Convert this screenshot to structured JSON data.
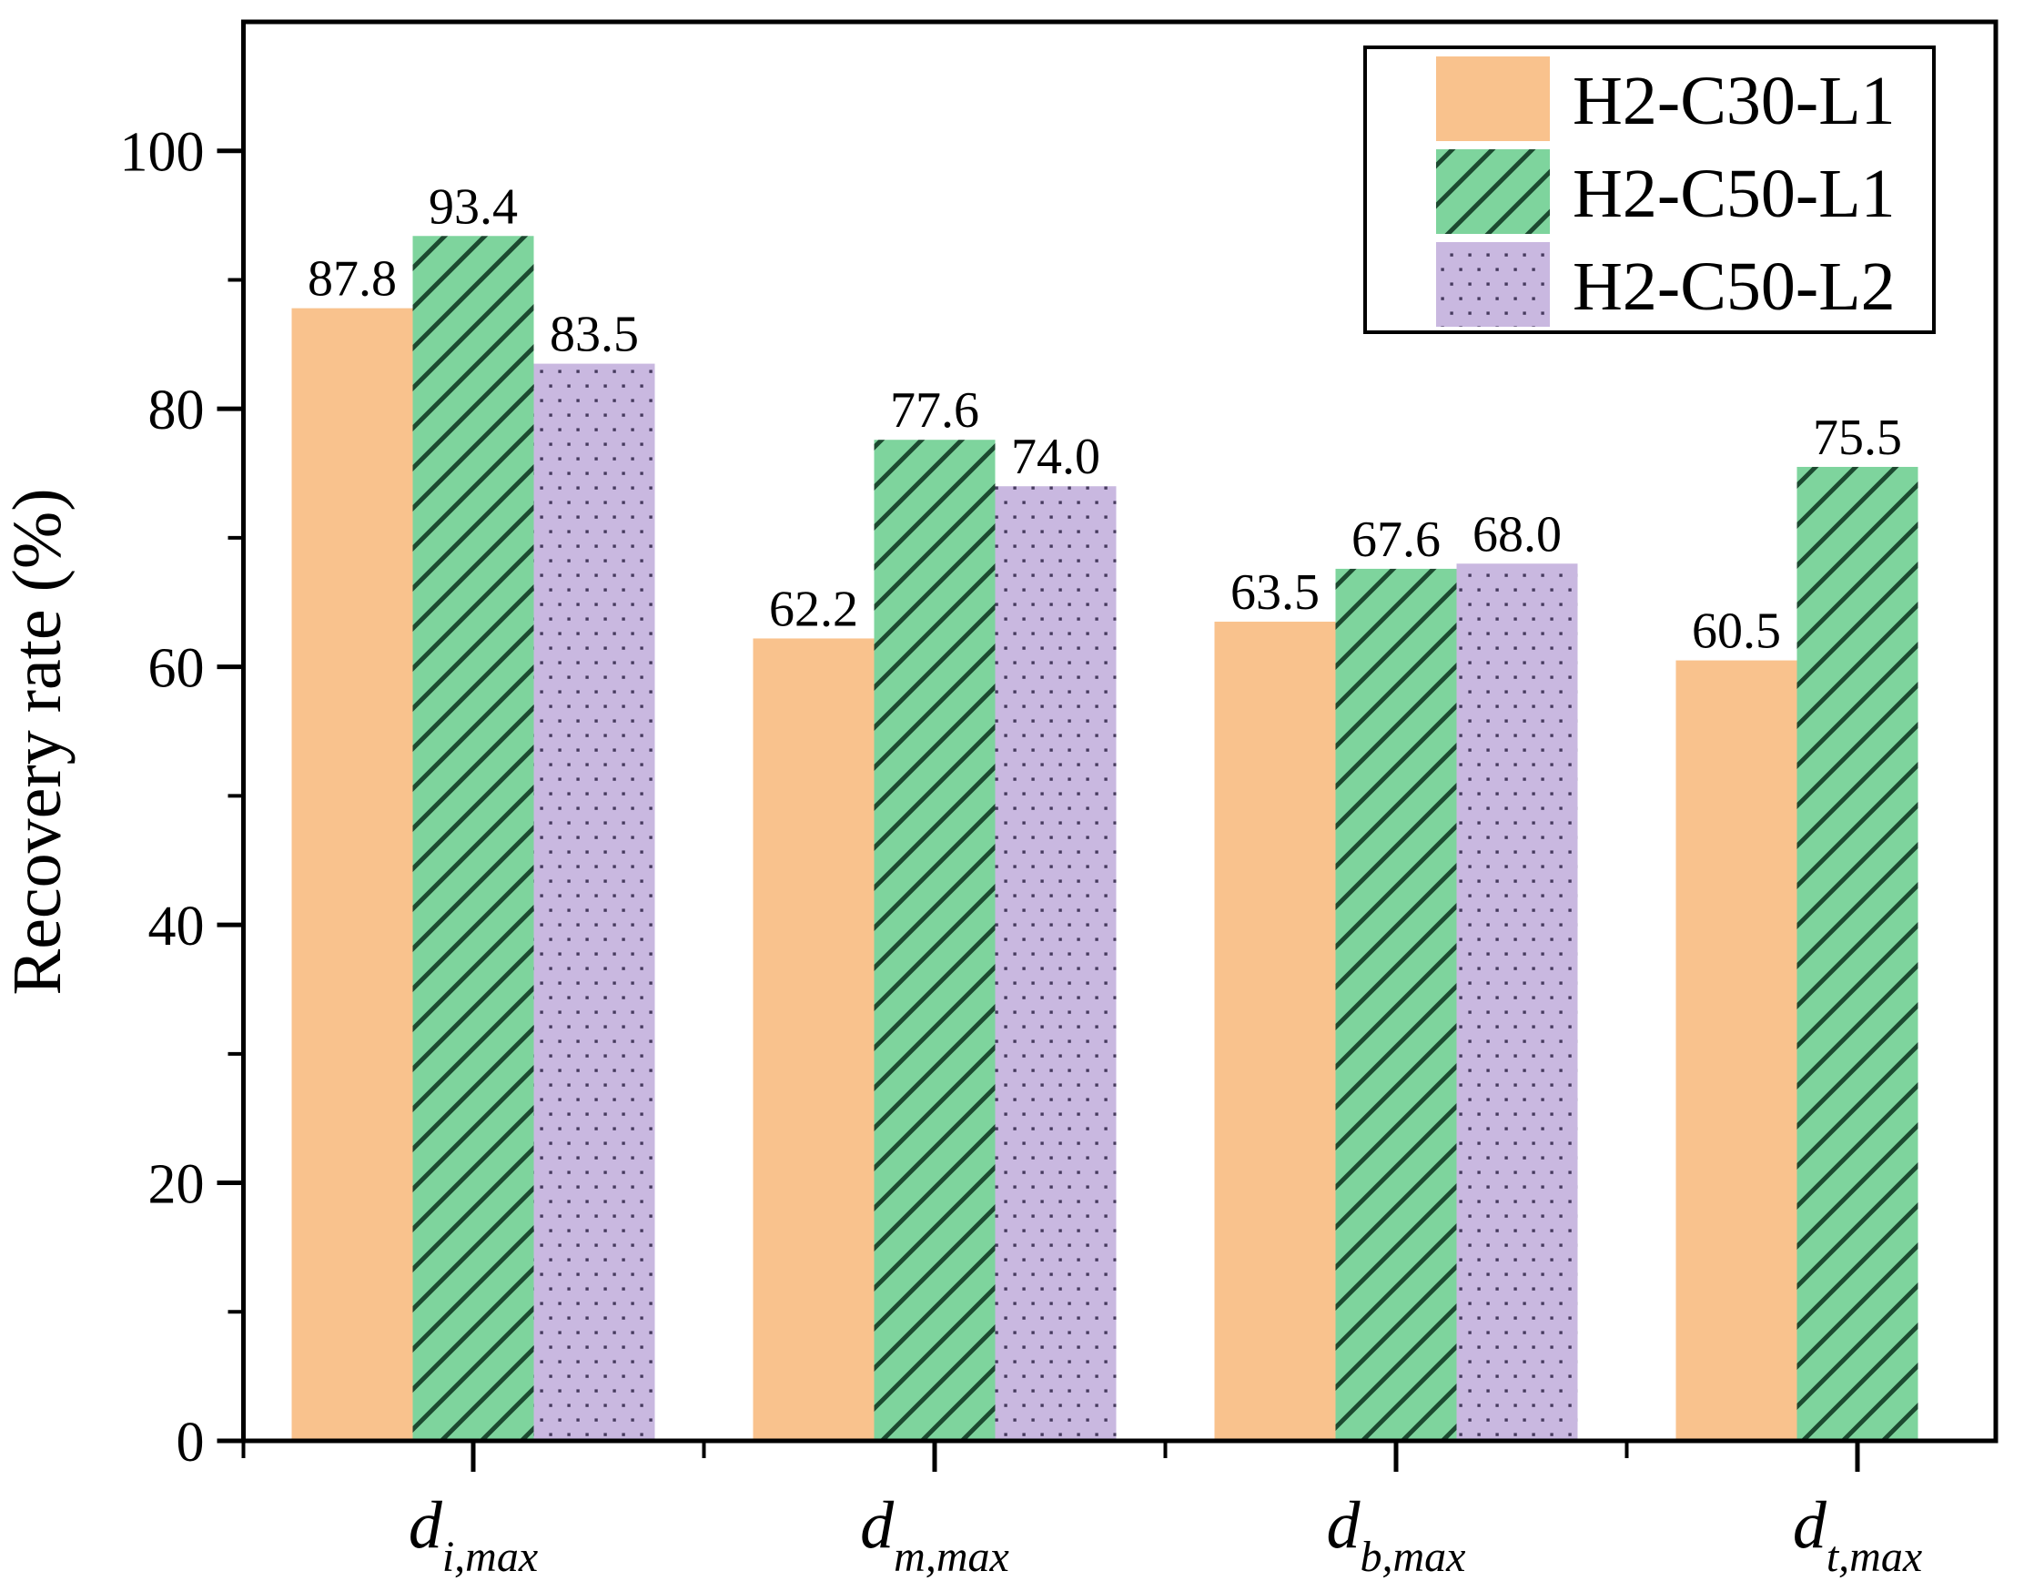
{
  "figure": {
    "background": "#ffffff",
    "axis_color": "#000000"
  },
  "chart_data": {
    "type": "bar",
    "title": "",
    "ylabel": "Recovery rate (%)",
    "xlabel": "",
    "ylim": [
      0,
      110
    ],
    "yticks_major": [
      0,
      20,
      40,
      60,
      80,
      100
    ],
    "yticks_minor": [
      10,
      30,
      50,
      70,
      90
    ],
    "grid": false,
    "legend_position": "top-right",
    "categories": [
      {
        "base": "d",
        "sub": "i,max"
      },
      {
        "base": "d",
        "sub": "m,max"
      },
      {
        "base": "d",
        "sub": "b,max"
      },
      {
        "base": "d",
        "sub": "t,max"
      }
    ],
    "series": [
      {
        "name": "H2-C30-L1",
        "pattern": "solid",
        "color": "#f9c28d",
        "values": [
          87.8,
          62.2,
          63.5,
          60.5
        ]
      },
      {
        "name": "H2-C50-L1",
        "pattern": "diagonal-hatch",
        "color": "#7ed49d",
        "hatch_color": "#1c4a30",
        "values": [
          93.4,
          77.6,
          67.6,
          75.5
        ]
      },
      {
        "name": "H2-C50-L2",
        "pattern": "dots",
        "color": "#c9b8e0",
        "dot_color": "#463a5e",
        "values": [
          83.5,
          74.0,
          68.0,
          null
        ]
      }
    ],
    "value_labels": [
      [
        "87.8",
        "93.4",
        "83.5"
      ],
      [
        "62.2",
        "77.6",
        "74.0"
      ],
      [
        "63.5",
        "67.6",
        "68.0"
      ],
      [
        "60.5",
        "75.5",
        null
      ]
    ]
  }
}
